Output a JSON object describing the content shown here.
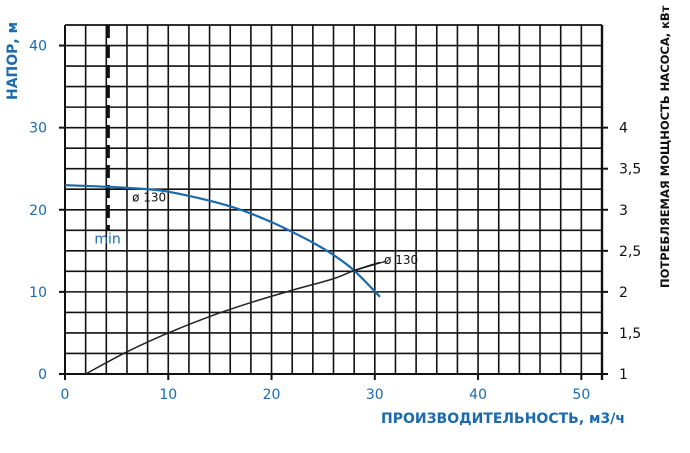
{
  "chart_data": {
    "type": "line",
    "xlabel": "ПРОИЗВОДИТЕЛЬНОСТЬ, м3/ч",
    "ylabel": "НАПОР, м",
    "y2label": "ПОТРЕБЛЯЕМАЯ МОЩНОСТЬ НАСОСА, кВт",
    "xlim": [
      0,
      52
    ],
    "ylim": [
      0,
      42.5
    ],
    "y2lim": [
      1,
      5.25
    ],
    "xticks": [
      "0",
      "10",
      "20",
      "30",
      "40",
      "50"
    ],
    "yticks": [
      "0",
      "10",
      "20",
      "30",
      "40"
    ],
    "y2ticks": [
      "1",
      "1,5",
      "2",
      "2,5",
      "3",
      "3,5",
      "4"
    ],
    "grid": true,
    "series": [
      {
        "name": "ø 130",
        "axis": "left",
        "color": "#1a6aad",
        "x": [
          0,
          4,
          8,
          10,
          14,
          17,
          20,
          22,
          24,
          26,
          28,
          30.5
        ],
        "y": [
          23,
          22.8,
          22.5,
          22.2,
          21.1,
          20,
          18.5,
          17.3,
          16,
          14.5,
          12.6,
          9.4
        ]
      },
      {
        "name": "ø 130",
        "axis": "right",
        "color": "#222222",
        "x": [
          2,
          6,
          10,
          14,
          18,
          22,
          26,
          28,
          30.5
        ],
        "y": [
          1,
          1.27,
          1.5,
          1.7,
          1.87,
          2.02,
          2.16,
          2.26,
          2.36
        ]
      }
    ],
    "annotations": [
      {
        "text": "min",
        "x": 4.2,
        "style": "dashed vertical line"
      }
    ]
  }
}
